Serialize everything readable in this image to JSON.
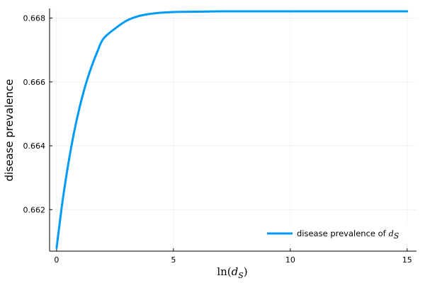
{
  "chart_data": {
    "type": "line",
    "xlabel": "ln(d_S)",
    "ylabel": "disease prevalence",
    "xlim": [
      -0.3,
      15.4
    ],
    "ylim": [
      0.6607,
      0.6683
    ],
    "x_ticks": [
      0,
      5,
      10,
      15
    ],
    "x_tick_labels": [
      "0",
      "5",
      "10",
      "15"
    ],
    "y_ticks": [
      0.662,
      0.664,
      0.666,
      0.668
    ],
    "y_tick_labels": [
      "0.662",
      "0.664",
      "0.666",
      "0.668"
    ],
    "grid": true,
    "legend_position": "bottom-right",
    "series": [
      {
        "name": "disease prevalence of d_S",
        "color": "#009af9",
        "x": [
          0,
          0.25,
          0.5,
          0.75,
          1,
          1.25,
          1.5,
          1.75,
          2,
          2.5,
          3,
          3.5,
          4,
          4.5,
          5,
          6,
          7,
          8,
          10,
          12,
          15
        ],
        "values": [
          0.6608,
          0.66224,
          0.66343,
          0.66443,
          0.66525,
          0.66593,
          0.66649,
          0.66696,
          0.66735,
          0.66767,
          0.66792,
          0.66806,
          0.66813,
          0.66817,
          0.66819,
          0.6682,
          0.66821,
          0.66821,
          0.66821,
          0.66821,
          0.66821
        ]
      }
    ]
  },
  "labels": {
    "ylabel": "disease prevalence",
    "xlabel_fn": "ln(",
    "xlabel_var": "d",
    "xlabel_sub": "S",
    "xlabel_close": ")",
    "legend_text": "disease prevalence of",
    "legend_var": "d",
    "legend_sub": "S"
  }
}
